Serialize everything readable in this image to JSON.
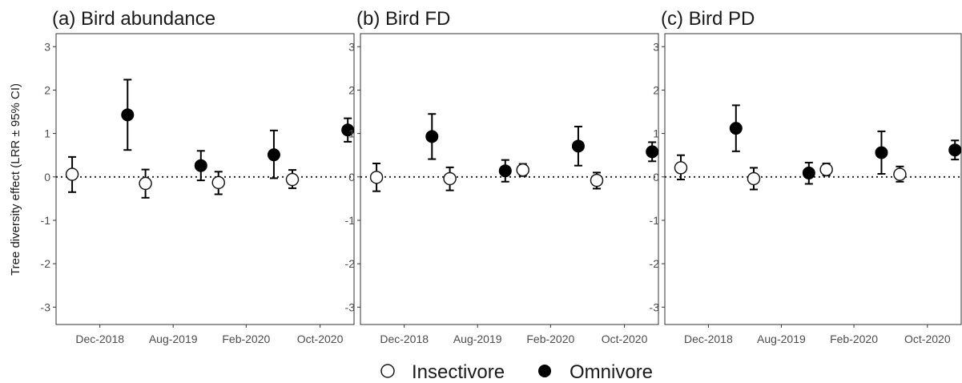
{
  "figure": {
    "ylabel": "Tree diversity effect (LRR ± 95% CI)",
    "legend": [
      {
        "label": "Insectivore",
        "marker": "open-circle"
      },
      {
        "label": "Omnivore",
        "marker": "filled-circle"
      }
    ]
  },
  "chart_data": [
    {
      "type": "scatter",
      "title": "(a) Bird abundance",
      "categories": [
        "Dec-2018",
        "Aug-2019",
        "Feb-2020",
        "Oct-2020"
      ],
      "ylim": [
        -3.4,
        3.3
      ],
      "yticks": [
        -3,
        -2,
        -1,
        0,
        1,
        2,
        3
      ],
      "reference_line": 0,
      "grid": false,
      "series": [
        {
          "name": "Insectivore",
          "values": [
            0.06,
            -0.15,
            -0.13,
            -0.06
          ],
          "lower": [
            -0.35,
            -0.48,
            -0.4,
            -0.26
          ],
          "upper": [
            0.46,
            0.17,
            0.12,
            0.16
          ]
        },
        {
          "name": "Omnivore",
          "values": [
            1.43,
            0.26,
            0.51,
            1.08
          ],
          "lower": [
            0.62,
            -0.08,
            -0.03,
            0.81
          ],
          "upper": [
            2.24,
            0.6,
            1.07,
            1.35
          ]
        }
      ]
    },
    {
      "type": "scatter",
      "title": "(b) Bird FD",
      "categories": [
        "Dec-2018",
        "Aug-2019",
        "Feb-2020",
        "Oct-2020"
      ],
      "ylim": [
        -3.4,
        3.3
      ],
      "yticks": [
        -3,
        -2,
        -1,
        0,
        1,
        2,
        3
      ],
      "reference_line": 0,
      "grid": false,
      "series": [
        {
          "name": "Insectivore",
          "values": [
            -0.01,
            -0.04,
            0.16,
            -0.08
          ],
          "lower": [
            -0.33,
            -0.31,
            0.02,
            -0.27
          ],
          "upper": [
            0.31,
            0.22,
            0.3,
            0.1
          ]
        },
        {
          "name": "Omnivore",
          "values": [
            0.93,
            0.14,
            0.71,
            0.58
          ],
          "lower": [
            0.41,
            -0.11,
            0.26,
            0.36
          ],
          "upper": [
            1.45,
            0.39,
            1.16,
            0.8
          ]
        }
      ]
    },
    {
      "type": "scatter",
      "title": "(c) Bird PD",
      "categories": [
        "Dec-2018",
        "Aug-2019",
        "Feb-2020",
        "Oct-2020"
      ],
      "ylim": [
        -3.4,
        3.3
      ],
      "yticks": [
        -3,
        -2,
        -1,
        0,
        1,
        2,
        3
      ],
      "reference_line": 0,
      "grid": false,
      "series": [
        {
          "name": "Insectivore",
          "values": [
            0.21,
            -0.04,
            0.17,
            0.06
          ],
          "lower": [
            -0.06,
            -0.29,
            0.03,
            -0.11
          ],
          "upper": [
            0.5,
            0.21,
            0.31,
            0.24
          ]
        },
        {
          "name": "Omnivore",
          "values": [
            1.12,
            0.09,
            0.56,
            0.62
          ],
          "lower": [
            0.59,
            -0.16,
            0.07,
            0.4
          ],
          "upper": [
            1.65,
            0.33,
            1.05,
            0.84
          ]
        }
      ]
    }
  ]
}
